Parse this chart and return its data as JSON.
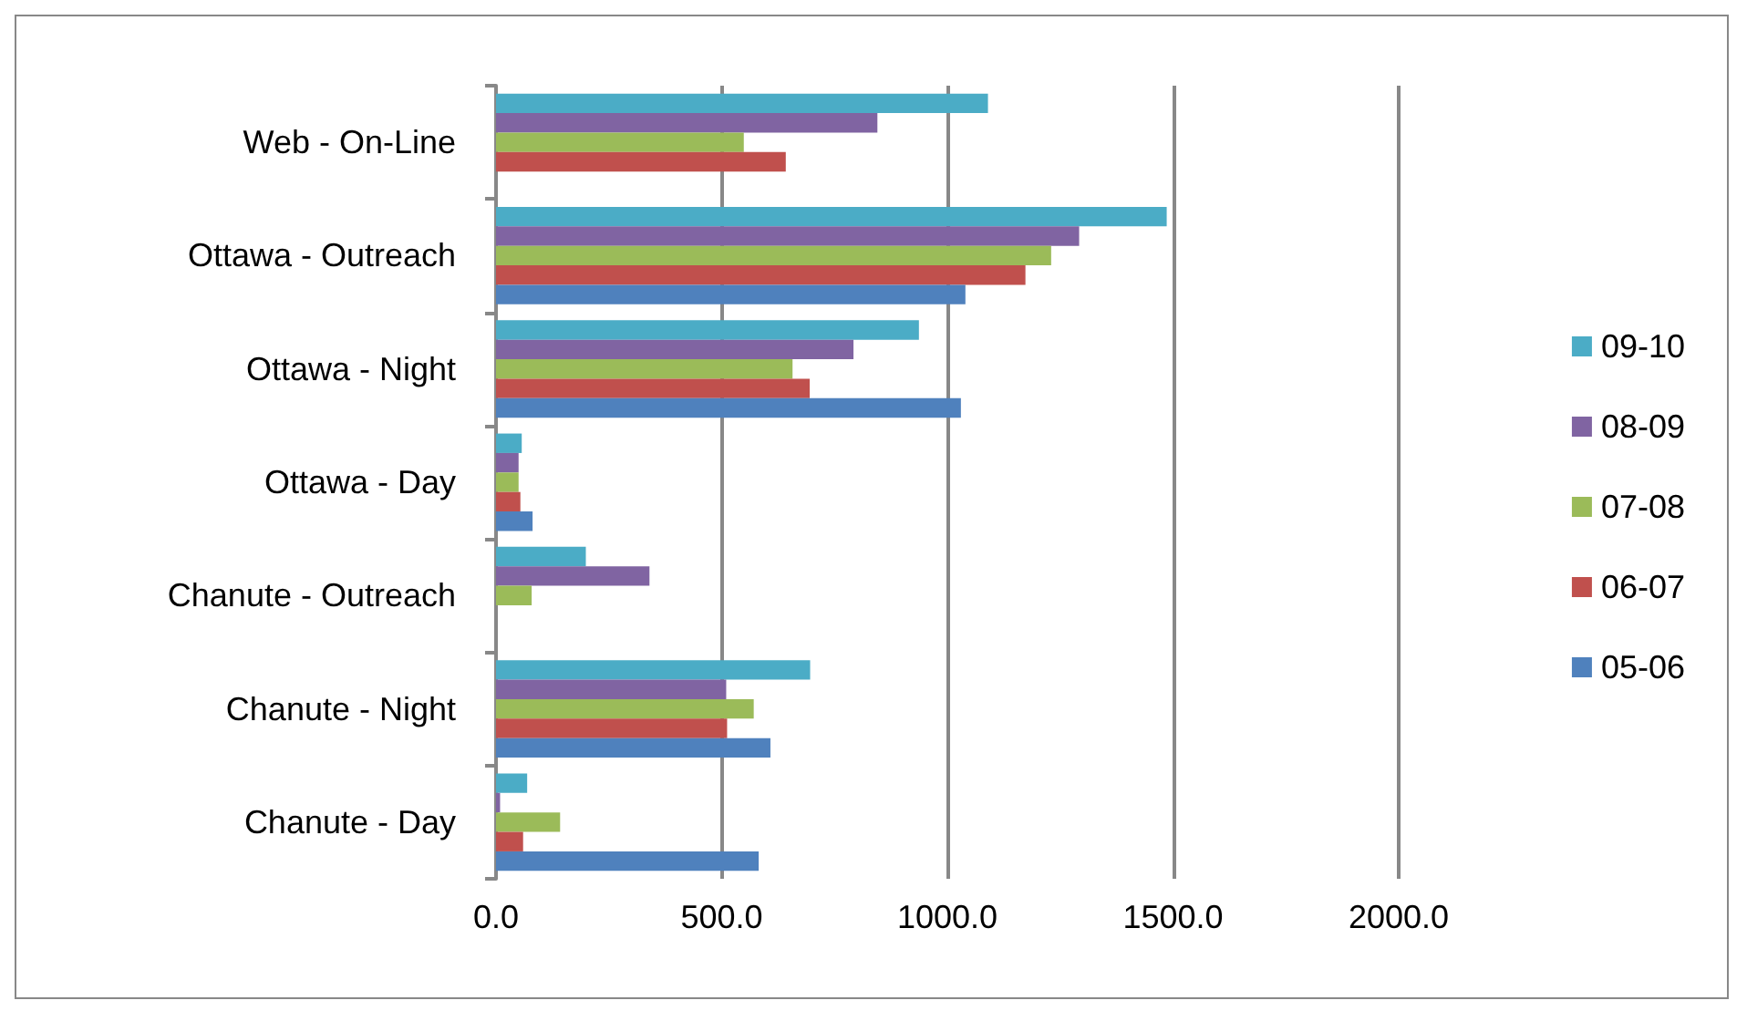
{
  "chart_data": {
    "type": "bar",
    "orientation": "horizontal",
    "categories": [
      "Web - On-Line",
      "Ottawa - Outreach",
      "Ottawa - Night",
      "Ottawa - Day",
      "Chanute - Outreach",
      "Chanute - Night",
      "Chanute - Day"
    ],
    "series": [
      {
        "name": "09-10",
        "color": "#4bacc6",
        "values": [
          1090,
          1486,
          937,
          57,
          199,
          696,
          69
        ]
      },
      {
        "name": "08-09",
        "color": "#8064a2",
        "values": [
          845,
          1292,
          792,
          50,
          340,
          510,
          9
        ]
      },
      {
        "name": "07-08",
        "color": "#9bbb59",
        "values": [
          549,
          1230,
          657,
          50,
          79,
          571,
          142
        ]
      },
      {
        "name": "06-07",
        "color": "#c0504d",
        "values": [
          642,
          1173,
          695,
          54,
          null,
          512,
          60
        ]
      },
      {
        "name": "05-06",
        "color": "#4f81bd",
        "values": [
          null,
          1040,
          1030,
          81,
          null,
          608,
          582
        ]
      }
    ],
    "xlim": [
      0,
      2000
    ],
    "xticks": [
      {
        "value": 0,
        "label": "0.0"
      },
      {
        "value": 500,
        "label": "500.0"
      },
      {
        "value": 1000,
        "label": "1000.0"
      },
      {
        "value": 1500,
        "label": "1500.0"
      },
      {
        "value": 2000,
        "label": "2000.0"
      }
    ],
    "grid": "x",
    "legend": "right"
  }
}
